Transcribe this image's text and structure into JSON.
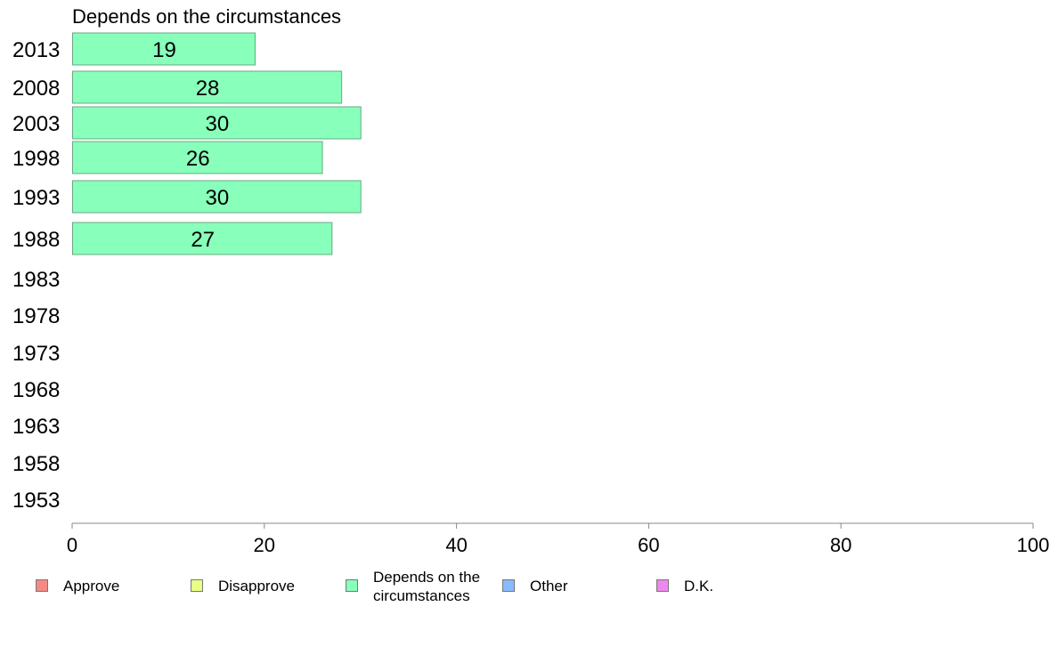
{
  "chart_data": {
    "type": "bar",
    "orientation": "horizontal",
    "title": "Depends on the circumstances",
    "categories": [
      "2013",
      "2008",
      "2003",
      "1998",
      "1993",
      "1988",
      "1983",
      "1978",
      "1973",
      "1968",
      "1963",
      "1958",
      "1953"
    ],
    "series": [
      {
        "name": "Depends on the circumstances",
        "color": "#88ffbb",
        "values": [
          19,
          28,
          30,
          26,
          30,
          27,
          null,
          null,
          null,
          null,
          null,
          null,
          null
        ]
      }
    ],
    "xlim": [
      0,
      100
    ],
    "xticks": [
      "0",
      "20",
      "40",
      "60",
      "80",
      "100"
    ],
    "xlabel": "",
    "ylabel": "",
    "grid": false,
    "legend_position": "bottom",
    "legend": [
      {
        "label": "Approve",
        "color": "#f48a84"
      },
      {
        "label": "Disapprove",
        "color": "#e8ff88"
      },
      {
        "label": "Depends on the circumstances",
        "color": "#88ffbb"
      },
      {
        "label": "Other",
        "color": "#88bbff"
      },
      {
        "label": "D.K.",
        "color": "#ee88ee"
      }
    ]
  }
}
